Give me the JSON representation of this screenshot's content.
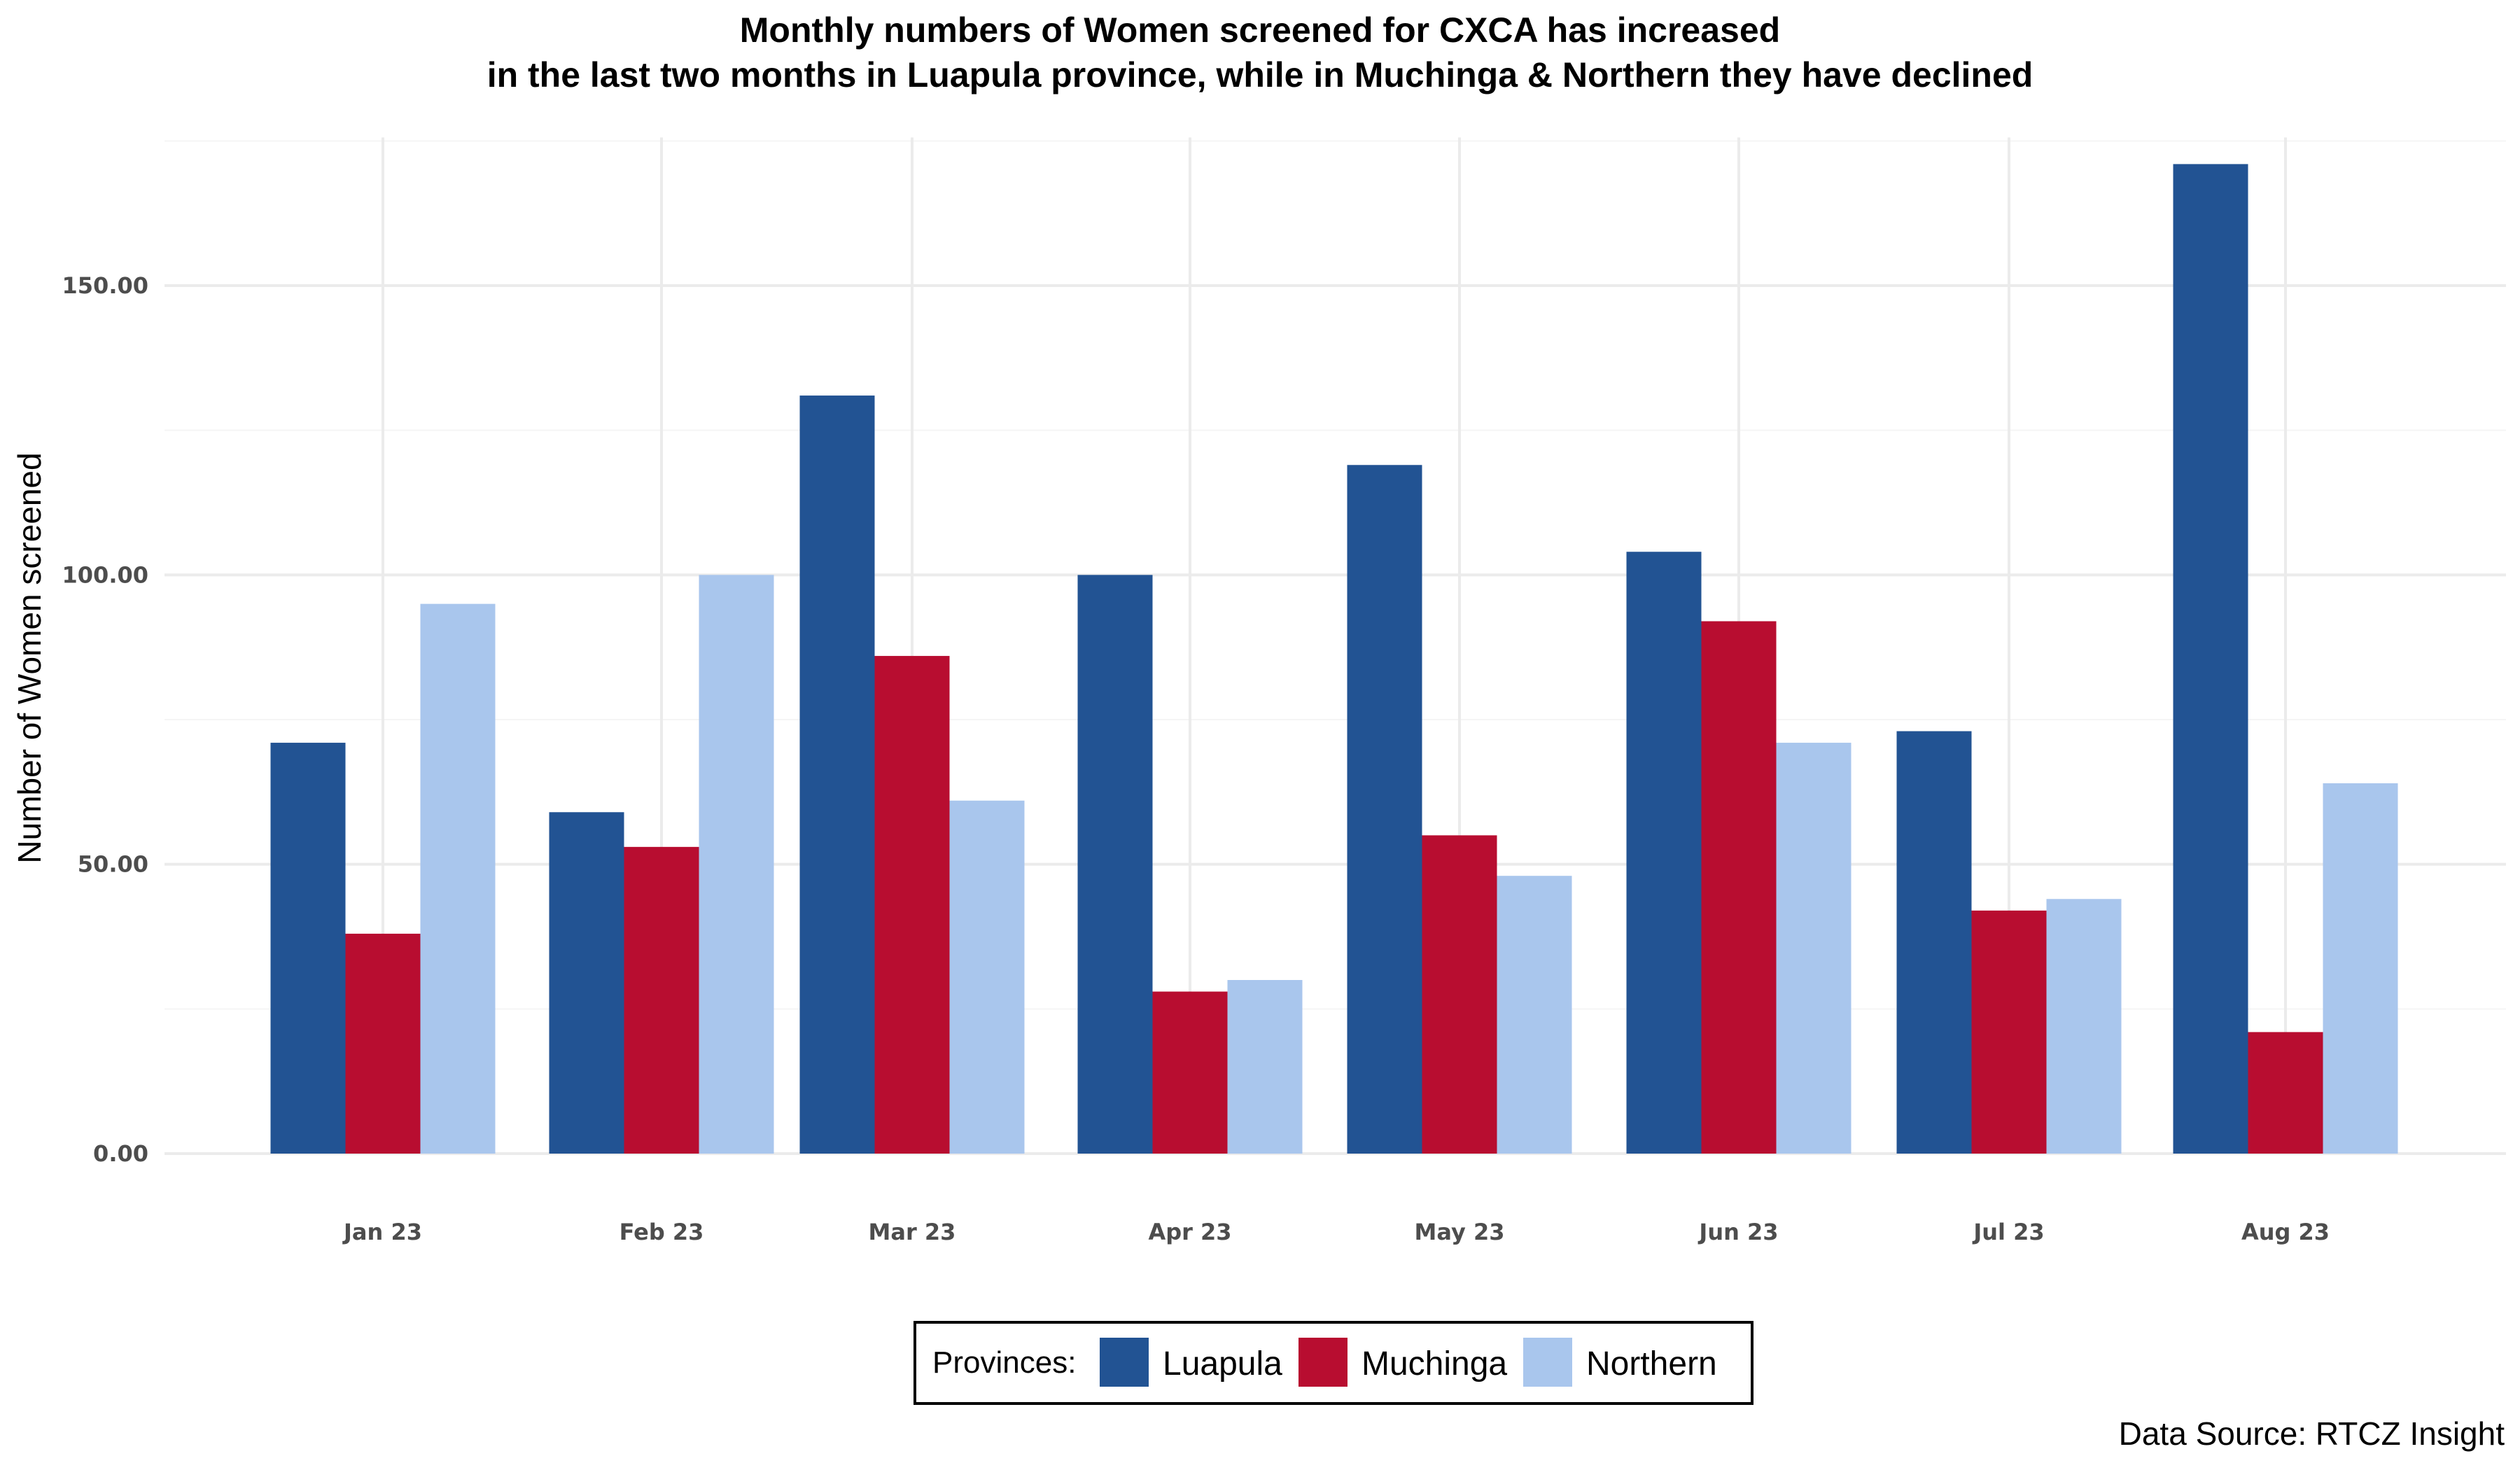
{
  "chart_data": {
    "type": "bar",
    "title_lines": [
      "Monthly numbers of Women screened for CXCA has increased",
      "in the last two months in Luapula province, while in Muchinga & Northern they have declined"
    ],
    "ylabel": "Number of Women screened",
    "xlabel": "",
    "ylim": [
      0,
      175
    ],
    "y_ticks": [
      0,
      50,
      100,
      150
    ],
    "y_tick_labels": [
      "0.00",
      "50.00",
      "100.00",
      "150.00"
    ],
    "categories": [
      "Jan 23",
      "Feb 23",
      "Mar 23",
      "Apr 23",
      "May 23",
      "Jun 23",
      "Jul 23",
      "Aug 23"
    ],
    "series": [
      {
        "name": "Luapula",
        "color": "#225393",
        "values": [
          71,
          59,
          131,
          100,
          119,
          104,
          73,
          171
        ]
      },
      {
        "name": "Muchinga",
        "color": "#b80d30",
        "values": [
          38,
          53,
          86,
          28,
          55,
          92,
          42,
          21
        ]
      },
      {
        "name": "Northern",
        "color": "#a9c6ed",
        "values": [
          95,
          100,
          61,
          30,
          48,
          71,
          44,
          64
        ]
      }
    ],
    "legend": {
      "title": "Provinces:",
      "position": "bottom"
    },
    "grid": true,
    "caption": "Data Source: RTCZ Insight"
  }
}
